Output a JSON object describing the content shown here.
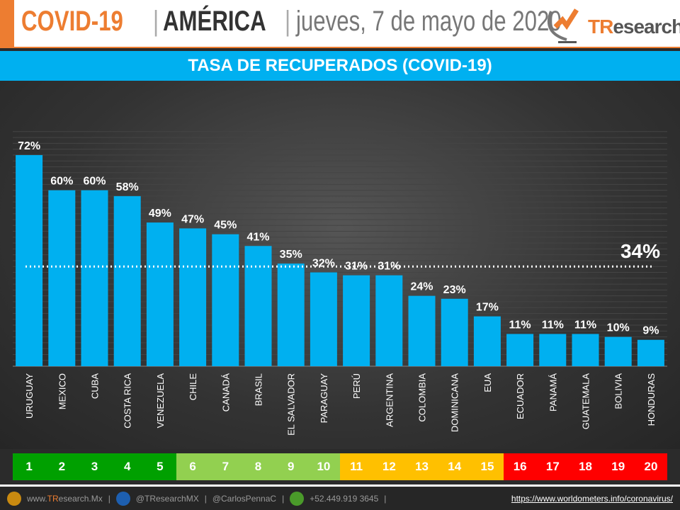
{
  "header": {
    "title": "COVID-19",
    "separator": "|",
    "region": "AMÉRICA",
    "date": "jueves, 7 de mayo de 2020",
    "logo_text_a": "TR",
    "logo_text_b": "esearch"
  },
  "banner": {
    "title": "TASA DE RECUPERADOS (COVID-19)"
  },
  "chart_data": {
    "type": "bar",
    "title": "TASA DE RECUPERADOS (COVID-19)",
    "categories": [
      "URUGUAY",
      "MEXICO",
      "CUBA",
      "COSTA RICA",
      "VENEZUELA",
      "CHILE",
      "CANADÁ",
      "BRASIL",
      "EL SALVADOR",
      "PARAGUAY",
      "PERÚ",
      "ARGENTINA",
      "COLOMBIA",
      "DOMINICANA",
      "EUA",
      "ECUADOR",
      "PANAMÁ",
      "GUATEMALA",
      "BOLIVIA",
      "HONDURAS"
    ],
    "values": [
      72,
      60,
      60,
      58,
      49,
      47,
      45,
      41,
      35,
      32,
      31,
      31,
      24,
      23,
      17,
      11,
      11,
      11,
      10,
      9
    ],
    "labels": [
      "72%",
      "60%",
      "60%",
      "58%",
      "49%",
      "47%",
      "45%",
      "41%",
      "35%",
      "32%",
      "31%",
      "31%",
      "24%",
      "23%",
      "17%",
      "11%",
      "11%",
      "11%",
      "10%",
      "9%"
    ],
    "unit": "%",
    "ylim": [
      0,
      80
    ],
    "grid": true,
    "bar_color": "#00b0f0",
    "average": {
      "value": 34,
      "label": "34%"
    }
  },
  "ranking": {
    "items": [
      "1",
      "2",
      "3",
      "4",
      "5",
      "6",
      "7",
      "8",
      "9",
      "10",
      "11",
      "12",
      "13",
      "14",
      "15",
      "16",
      "17",
      "18",
      "19",
      "20"
    ],
    "colors": [
      "#00a000",
      "#00a000",
      "#00a000",
      "#00a000",
      "#00a000",
      "#92d050",
      "#92d050",
      "#92d050",
      "#92d050",
      "#92d050",
      "#ffc000",
      "#ffc000",
      "#ffc000",
      "#ffc000",
      "#ffc000",
      "#ff0000",
      "#ff0000",
      "#ff0000",
      "#ff0000",
      "#ff0000"
    ]
  },
  "footer": {
    "web_a": "www.",
    "web_b": "TR",
    "web_c": "esearch.Mx",
    "sep": "|",
    "twitter": "@TResearchMX",
    "twitter2": "@CarlosPennaC",
    "phone": "+52.449.919 3645",
    "source": "https://www.worldometers.info/coronavirus/"
  }
}
